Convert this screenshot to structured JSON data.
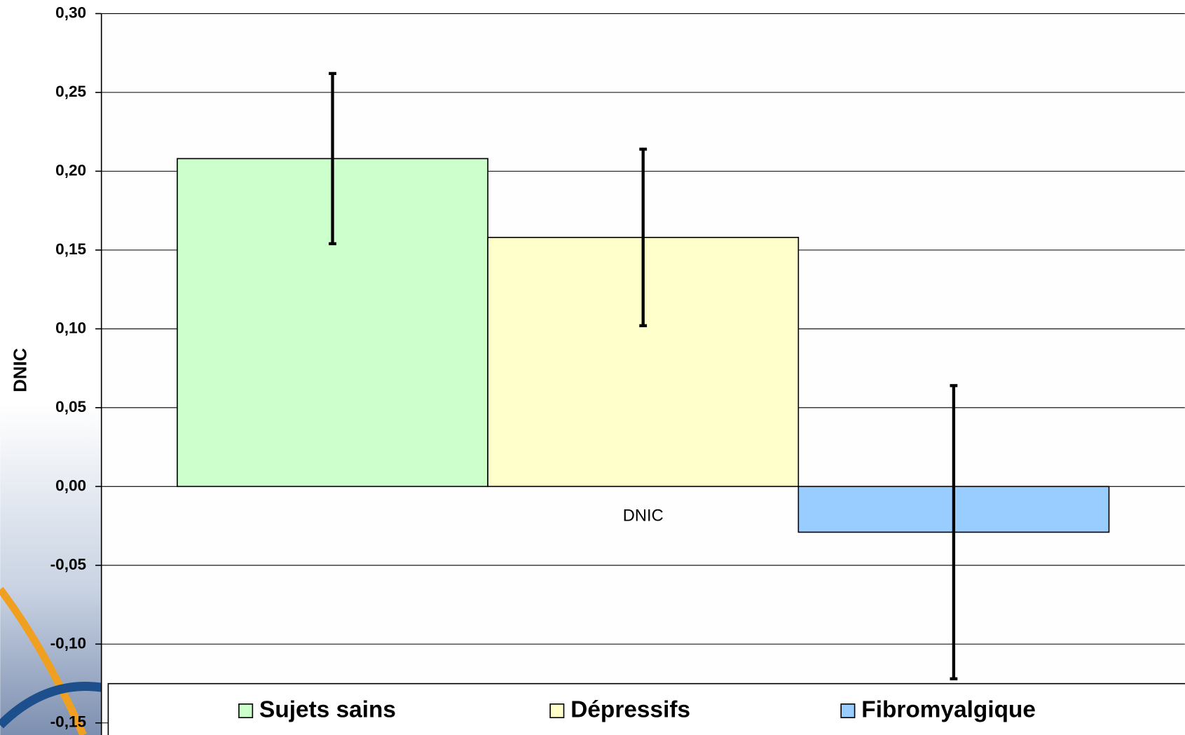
{
  "chart_data": {
    "type": "bar",
    "y_label": "DNIC",
    "categories": [
      "DNIC"
    ],
    "series": [
      {
        "name": "Sujets sains",
        "color": "#ccffcc",
        "values": [
          0.208
        ],
        "errors": [
          0.054
        ]
      },
      {
        "name": "Dépressifs",
        "color": "#ffffcc",
        "values": [
          0.158
        ],
        "errors": [
          0.056
        ]
      },
      {
        "name": "Fibromyalgique",
        "color": "#99ccff",
        "values": [
          -0.029
        ],
        "errors": [
          0.093
        ]
      }
    ],
    "ylim": [
      -0.15,
      0.3
    ],
    "yticks": [
      {
        "value": -0.15,
        "label": "-0,15"
      },
      {
        "value": -0.1,
        "label": "-0,10"
      },
      {
        "value": -0.05,
        "label": "-0,05"
      },
      {
        "value": 0,
        "label": "0,00"
      },
      {
        "value": 0.05,
        "label": "0,05"
      },
      {
        "value": 0.1,
        "label": "0,10"
      },
      {
        "value": 0.15,
        "label": "0,15"
      },
      {
        "value": 0.2,
        "label": "0,20"
      },
      {
        "value": 0.25,
        "label": "0,25"
      },
      {
        "value": 0.3,
        "label": "0,30"
      }
    ],
    "grid": true,
    "legend": "bottom"
  }
}
